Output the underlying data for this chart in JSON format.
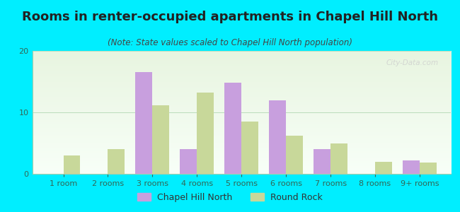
{
  "title": "Rooms in renter-occupied apartments in Chapel Hill North",
  "subtitle": "(Note: State values scaled to Chapel Hill North population)",
  "categories": [
    "1 room",
    "2 rooms",
    "3 rooms",
    "4 rooms",
    "5 rooms",
    "6 rooms",
    "7 rooms",
    "8 rooms",
    "9+ rooms"
  ],
  "chapel_hill_north": [
    0,
    0,
    16.5,
    4.0,
    14.8,
    12.0,
    4.0,
    0,
    2.2
  ],
  "round_rock": [
    3.0,
    4.0,
    11.2,
    13.2,
    8.5,
    6.2,
    5.0,
    2.0,
    1.8
  ],
  "chapel_hill_color": "#c89fde",
  "round_rock_color": "#c8d89a",
  "background_color": "#00eeff",
  "ylim": [
    0,
    20
  ],
  "yticks": [
    0,
    10,
    20
  ],
  "bar_width": 0.38,
  "legend_label_1": "Chapel Hill North",
  "legend_label_2": "Round Rock",
  "watermark": "City-Data.com",
  "title_fontsize": 13,
  "subtitle_fontsize": 8.5,
  "axis_fontsize": 8,
  "legend_fontsize": 9,
  "tick_color": "#336655",
  "title_color": "#222222",
  "subtitle_color": "#444444"
}
